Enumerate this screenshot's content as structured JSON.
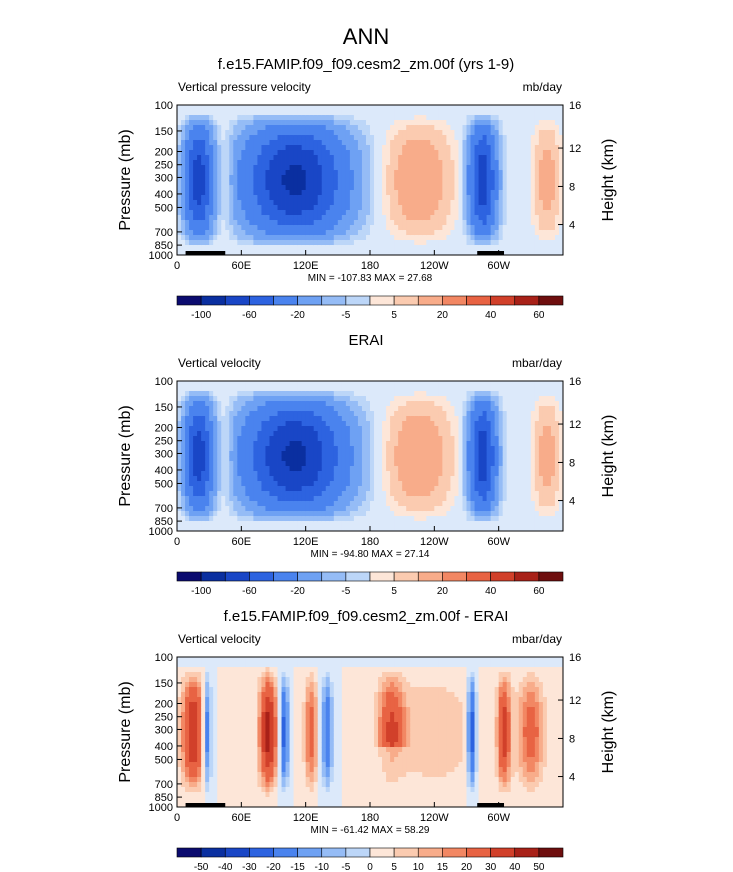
{
  "figure_title": "ANN",
  "colors": {
    "scale": [
      "#0b0b6f",
      "#0a2fa0",
      "#1946c6",
      "#2d63e0",
      "#4a83ee",
      "#6ea1f3",
      "#95bcf6",
      "#bcd6f8",
      "#dce9fa",
      "#fde6d8",
      "#fbcbb0",
      "#f8ac8a",
      "#f28763",
      "#e86343",
      "#d1402a",
      "#a82118",
      "#6e0e0e"
    ]
  },
  "chart_data": [
    {
      "type": "heatmap",
      "title": "f.e15.FAMIP.f09_f09.cesm2_zm.00f (yrs 1-9)",
      "left_label": "Vertical pressure velocity",
      "right_label": "mb/day",
      "ylabel": "Pressure (mb)",
      "ylabel_right": "Height (km)",
      "y_ticks": [
        "100",
        "150",
        "200",
        "250",
        "300",
        "400",
        "500",
        "700",
        "850",
        "1000"
      ],
      "y_right_ticks": [
        "16",
        "12",
        "8",
        "4"
      ],
      "x_ticks": [
        "0",
        "60E",
        "120E",
        "180",
        "120W",
        "60W"
      ],
      "stats": "MIN = -107.83  MAX =  27.68",
      "colorbar_labels": [
        "-100",
        "-60",
        "-20",
        "-5",
        "5",
        "20",
        "40",
        "60"
      ],
      "colorbar_boxes": 16,
      "xlim": [
        0,
        360
      ],
      "ylim": [
        1000,
        100
      ]
    },
    {
      "type": "heatmap",
      "title": "ERAI",
      "left_label": "Vertical velocity",
      "right_label": "mbar/day",
      "ylabel": "Pressure (mb)",
      "ylabel_right": "Height (km)",
      "y_ticks": [
        "100",
        "150",
        "200",
        "250",
        "300",
        "400",
        "500",
        "700",
        "850",
        "1000"
      ],
      "y_right_ticks": [
        "16",
        "12",
        "8",
        "4"
      ],
      "x_ticks": [
        "0",
        "60E",
        "120E",
        "180",
        "120W",
        "60W"
      ],
      "stats": "MIN = -94.80  MAX =  27.14",
      "colorbar_labels": [
        "-100",
        "-60",
        "-20",
        "-5",
        "5",
        "20",
        "40",
        "60"
      ],
      "colorbar_boxes": 16,
      "xlim": [
        0,
        360
      ],
      "ylim": [
        1000,
        100
      ]
    },
    {
      "type": "heatmap",
      "title": "f.e15.FAMIP.f09_f09.cesm2_zm.00f - ERAI",
      "left_label": "Vertical velocity",
      "right_label": "mbar/day",
      "ylabel": "Pressure (mb)",
      "ylabel_right": "Height (km)",
      "y_ticks": [
        "100",
        "150",
        "200",
        "250",
        "300",
        "400",
        "500",
        "700",
        "850",
        "1000"
      ],
      "y_right_ticks": [
        "16",
        "12",
        "8",
        "4"
      ],
      "x_ticks": [
        "0",
        "60E",
        "120E",
        "180",
        "120W",
        "60W"
      ],
      "stats": "MIN = -61.42  MAX =  58.29",
      "colorbar_labels": [
        "-50",
        "-40",
        "-30",
        "-20",
        "-15",
        "-10",
        "-5",
        "0",
        "5",
        "10",
        "15",
        "20",
        "30",
        "40",
        "50"
      ],
      "colorbar_boxes": 16,
      "xlim": [
        0,
        360
      ],
      "ylim": [
        1000,
        100
      ]
    }
  ]
}
